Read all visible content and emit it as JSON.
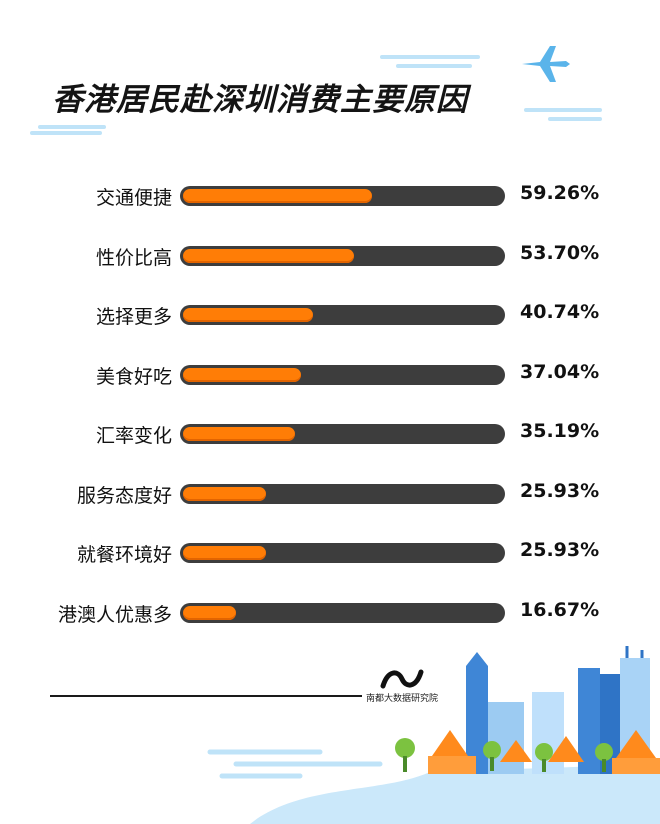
{
  "title": "香港居民赴深圳消费主要原因",
  "logo": {
    "text": "南都大数据研究院"
  },
  "colors": {
    "bar_fill": "#ff7d06",
    "bar_track": "#3d3d3d",
    "sky": "#bfe3f8",
    "building": "#3f86d6"
  },
  "icons": {
    "plane": "airplane-icon",
    "logo": "brand-logo-icon"
  },
  "chart_data": {
    "type": "bar",
    "orientation": "horizontal",
    "categories": [
      "交通便捷",
      "性价比高",
      "选择更多",
      "美食好吃",
      "汇率变化",
      "服务态度好",
      "就餐环境好",
      "港澳人优惠多"
    ],
    "values": [
      59.26,
      53.7,
      40.74,
      37.04,
      35.19,
      25.93,
      25.93,
      16.67
    ],
    "value_labels": [
      "59.26%",
      "53.70%",
      "40.74%",
      "37.04%",
      "35.19%",
      "25.93%",
      "25.93%",
      "16.67%"
    ],
    "unit": "%",
    "xlim": [
      0,
      100
    ],
    "grid": false,
    "legend": "none"
  }
}
